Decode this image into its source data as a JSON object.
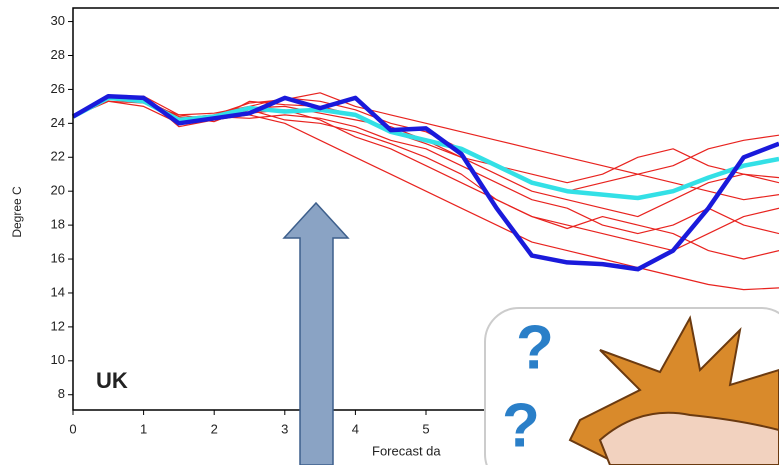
{
  "chart_data": {
    "type": "line",
    "annotation": "UK",
    "xlabel": "Forecast da",
    "ylabel": "Degree C",
    "x": [
      0,
      0.5,
      1,
      1.5,
      2,
      2.5,
      3,
      3.5,
      4,
      4.5,
      5,
      5.5,
      6,
      6.5,
      7,
      7.5,
      8,
      8.5,
      9,
      9.5,
      10
    ],
    "xlim": [
      0,
      10
    ],
    "xticks": [
      0,
      1,
      2,
      3,
      4,
      5
    ],
    "ylim": [
      7.1,
      30.8
    ],
    "yticks": [
      8,
      10,
      12,
      14,
      16,
      18,
      20,
      22,
      24,
      26,
      28,
      30
    ],
    "series": [
      {
        "color": "#e8231f",
        "values": [
          24.4,
          25.4,
          25.6,
          23.8,
          24.2,
          24.8,
          24.2,
          24.0,
          23.5,
          22.8,
          22.0,
          21.0,
          19.5,
          18.5,
          18.0,
          17.5,
          17.0,
          16.5,
          17.5,
          18.5,
          19.0
        ]
      },
      {
        "color": "#e8231f",
        "values": [
          24.4,
          25.5,
          25.3,
          24.3,
          24.5,
          25.2,
          25.4,
          25.8,
          25.0,
          24.5,
          24.0,
          23.5,
          23.0,
          22.5,
          22.0,
          21.5,
          21.0,
          21.5,
          22.5,
          23.0,
          23.3
        ]
      },
      {
        "color": "#e8231f",
        "values": [
          24.4,
          25.3,
          25.0,
          24.0,
          24.2,
          24.5,
          24.0,
          23.0,
          22.0,
          21.0,
          20.0,
          19.0,
          18.0,
          17.0,
          16.5,
          16.0,
          15.5,
          15.0,
          14.5,
          14.2,
          14.3
        ]
      },
      {
        "color": "#e8231f",
        "values": [
          24.4,
          25.6,
          25.2,
          24.5,
          24.6,
          25.0,
          25.5,
          25.3,
          24.8,
          24.0,
          23.5,
          22.5,
          21.5,
          20.5,
          20.0,
          20.5,
          21.0,
          20.5,
          20.0,
          19.5,
          19.8
        ]
      },
      {
        "color": "#e8231f",
        "values": [
          24.4,
          25.4,
          25.5,
          24.1,
          24.3,
          24.6,
          24.8,
          24.2,
          23.2,
          22.5,
          21.5,
          20.5,
          19.5,
          18.5,
          17.8,
          18.5,
          18.0,
          17.5,
          16.5,
          16.0,
          16.5
        ]
      },
      {
        "color": "#e8231f",
        "values": [
          24.4,
          25.5,
          25.4,
          24.4,
          24.1,
          24.9,
          25.0,
          24.6,
          24.2,
          23.8,
          23.0,
          22.0,
          21.0,
          20.0,
          19.5,
          19.0,
          18.5,
          19.5,
          20.5,
          21.0,
          20.8
        ]
      },
      {
        "color": "#e8231f",
        "values": [
          24.4,
          25.3,
          25.2,
          24.2,
          24.4,
          24.3,
          24.5,
          24.3,
          23.8,
          23.0,
          22.5,
          21.5,
          20.5,
          19.5,
          19.0,
          18.0,
          17.5,
          18.0,
          19.0,
          18.0,
          17.5
        ]
      },
      {
        "color": "#e8231f",
        "values": [
          24.4,
          25.6,
          25.6,
          24.5,
          24.2,
          25.3,
          25.1,
          25.0,
          24.5,
          23.5,
          22.8,
          22.0,
          21.5,
          21.0,
          20.5,
          21.0,
          22.0,
          22.5,
          21.5,
          21.0,
          20.5
        ]
      },
      {
        "color": "#33e0e6",
        "values": [
          24.4,
          25.5,
          25.3,
          24.2,
          24.4,
          24.9,
          24.7,
          24.8,
          24.5,
          23.5,
          23.0,
          22.5,
          21.5,
          20.5,
          20.0,
          19.8,
          19.6,
          20.0,
          20.8,
          21.5,
          21.9
        ]
      },
      {
        "color": "#1a1adb",
        "values": [
          24.4,
          25.6,
          25.5,
          24.0,
          24.3,
          24.6,
          25.5,
          24.9,
          25.5,
          23.6,
          23.7,
          22.2,
          19.0,
          16.2,
          15.8,
          15.7,
          15.4,
          16.5,
          19.0,
          22.0,
          22.8
        ]
      }
    ]
  }
}
